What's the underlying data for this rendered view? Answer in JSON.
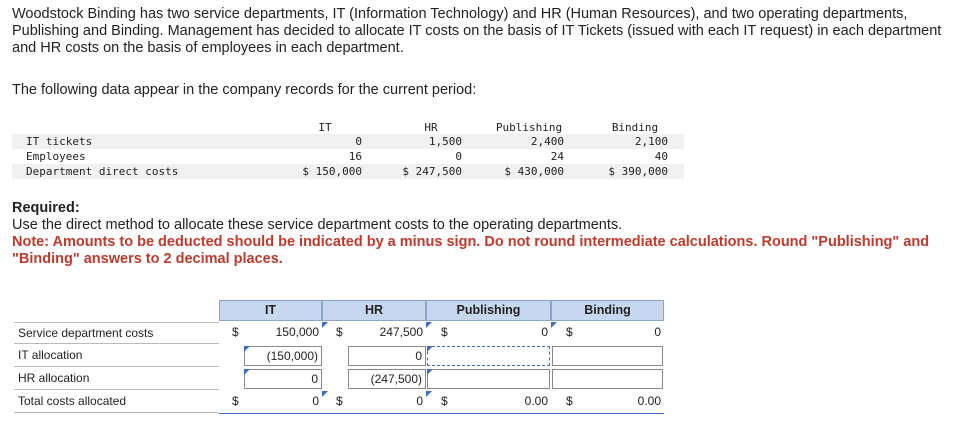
{
  "intro_text": "Woodstock Binding has two service departments, IT (Information Technology) and HR (Human Resources), and two operating departments, Publishing and Binding. Management has decided to allocate IT costs on the basis of IT Tickets (issued with each IT request) in each department and HR costs on the basis of employees in each department.",
  "lead_text": "The following data appear in the company records for the current period:",
  "data_table": {
    "headers": [
      "IT",
      "HR",
      "Publishing",
      "Binding"
    ],
    "rows": [
      {
        "label": "IT tickets",
        "values": [
          "0",
          "1,500",
          "2,400",
          "2,100"
        ]
      },
      {
        "label": "Employees",
        "values": [
          "16",
          "0",
          "24",
          "40"
        ]
      },
      {
        "label": "Department direct costs",
        "values": [
          "$ 150,000",
          "$ 247,500",
          "$ 430,000",
          "$ 390,000"
        ]
      }
    ]
  },
  "required": {
    "title": "Required:",
    "instruction": "Use the direct method to allocate these service department costs to the operating departments.",
    "note": "Note: Amounts to be deducted should be indicated by a minus sign. Do not round intermediate calculations. Round \"Publishing\" and \"Binding\" answers to 2 decimal places."
  },
  "answer_grid": {
    "headers": [
      "IT",
      "HR",
      "Publishing",
      "Binding"
    ],
    "currency": "$",
    "rows": [
      {
        "label": "Service department costs",
        "it": "150,000",
        "hr": "247,500",
        "publishing": "0",
        "binding": "0"
      },
      {
        "label": "IT allocation",
        "it": "(150,000)",
        "hr": "0",
        "publishing": "",
        "binding": ""
      },
      {
        "label": "HR allocation",
        "it": "0",
        "hr": "(247,500)",
        "publishing": "",
        "binding": ""
      },
      {
        "label": "Total costs allocated",
        "it": "0",
        "hr": "0",
        "publishing": "0.00",
        "binding": "0.00"
      }
    ]
  }
}
